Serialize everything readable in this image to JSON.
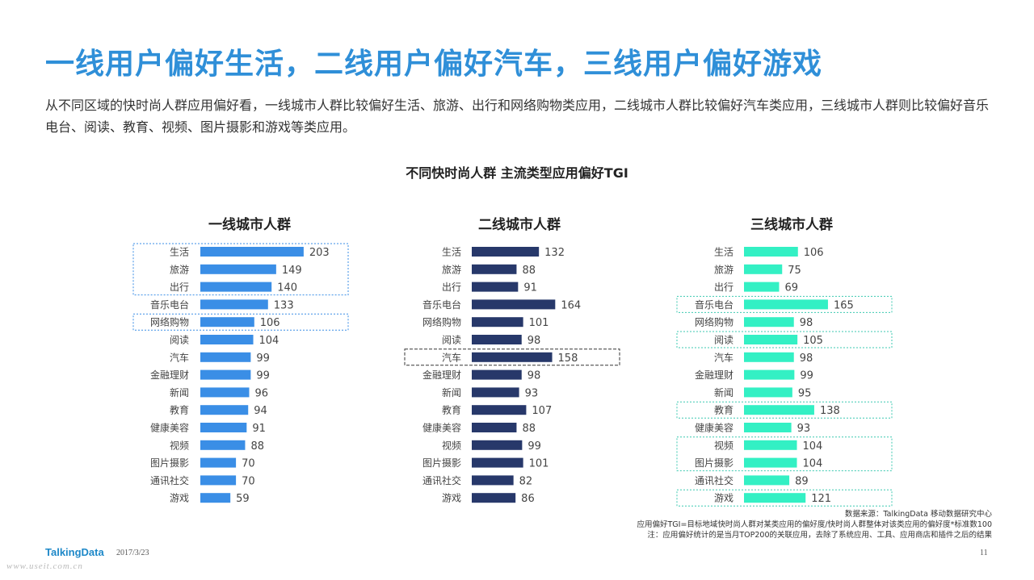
{
  "header": {
    "title": "一线用户偏好生活，二线用户偏好汽车，三线用户偏好游戏",
    "intro": "从不同区域的快时尚人群应用偏好看，一线城市人群比较偏好生活、旅游、出行和网络购物类应用，二线城市人群比较偏好汽车类应用，三线城市人群则比较偏好音乐电台、阅读、教育、视频、图片摄影和游戏等类应用。"
  },
  "chart_title": "不同快时尚人群  主流类型应用偏好TGI",
  "chart_data": [
    {
      "type": "bar",
      "orientation": "horizontal",
      "title": "一线城市人群",
      "color": "#3a8ee6",
      "categories": [
        "生活",
        "旅游",
        "出行",
        "音乐电台",
        "网络购物",
        "阅读",
        "汽车",
        "金融理财",
        "新闻",
        "教育",
        "健康美容",
        "视频",
        "图片摄影",
        "通讯社交",
        "游戏"
      ],
      "values": [
        203,
        149,
        140,
        133,
        106,
        104,
        99,
        99,
        96,
        94,
        91,
        88,
        70,
        70,
        59
      ],
      "highlight_groups": [
        [
          "生活",
          "旅游",
          "出行"
        ],
        [
          "网络购物"
        ]
      ],
      "highlight_style": "dotted",
      "highlight_color": "#3a8ee6"
    },
    {
      "type": "bar",
      "orientation": "horizontal",
      "title": "二线城市人群",
      "color": "#27386a",
      "categories": [
        "生活",
        "旅游",
        "出行",
        "音乐电台",
        "网络购物",
        "阅读",
        "汽车",
        "金融理财",
        "新闻",
        "教育",
        "健康美容",
        "视频",
        "图片摄影",
        "通讯社交",
        "游戏"
      ],
      "values": [
        132,
        88,
        91,
        164,
        101,
        98,
        158,
        98,
        93,
        107,
        88,
        99,
        101,
        82,
        86
      ],
      "highlight_groups": [
        [
          "汽车"
        ]
      ],
      "highlight_style": "dashed",
      "highlight_color": "#333333"
    },
    {
      "type": "bar",
      "orientation": "horizontal",
      "title": "三线城市人群",
      "color": "#33f0c4",
      "categories": [
        "生活",
        "旅游",
        "出行",
        "音乐电台",
        "网络购物",
        "阅读",
        "汽车",
        "金融理财",
        "新闻",
        "教育",
        "健康美容",
        "视频",
        "图片摄影",
        "通讯社交",
        "游戏"
      ],
      "values": [
        106,
        75,
        69,
        165,
        98,
        105,
        98,
        99,
        95,
        138,
        93,
        104,
        104,
        89,
        121
      ],
      "highlight_groups": [
        [
          "音乐电台"
        ],
        [
          "阅读"
        ],
        [
          "教育"
        ],
        [
          "视频",
          "图片摄影"
        ],
        [
          "游戏"
        ]
      ],
      "highlight_style": "dotted",
      "highlight_color": "#3cc9b0"
    }
  ],
  "notes": {
    "source": "数据来源：TalkingData 移动数据研究中心",
    "definition": "应用偏好TGI=目标地域快时尚人群对某类应用的偏好度/快时尚人群整体对该类应用的偏好度*标准数100",
    "remark": "注：应用偏好统计的是当月TOP200的关联应用，去除了系统应用、工具、应用商店和插件之后的结果"
  },
  "footer": {
    "brand": "TalkingData",
    "date": "2017/3/23",
    "page": "11",
    "watermark": "www.useit.com.cn"
  }
}
